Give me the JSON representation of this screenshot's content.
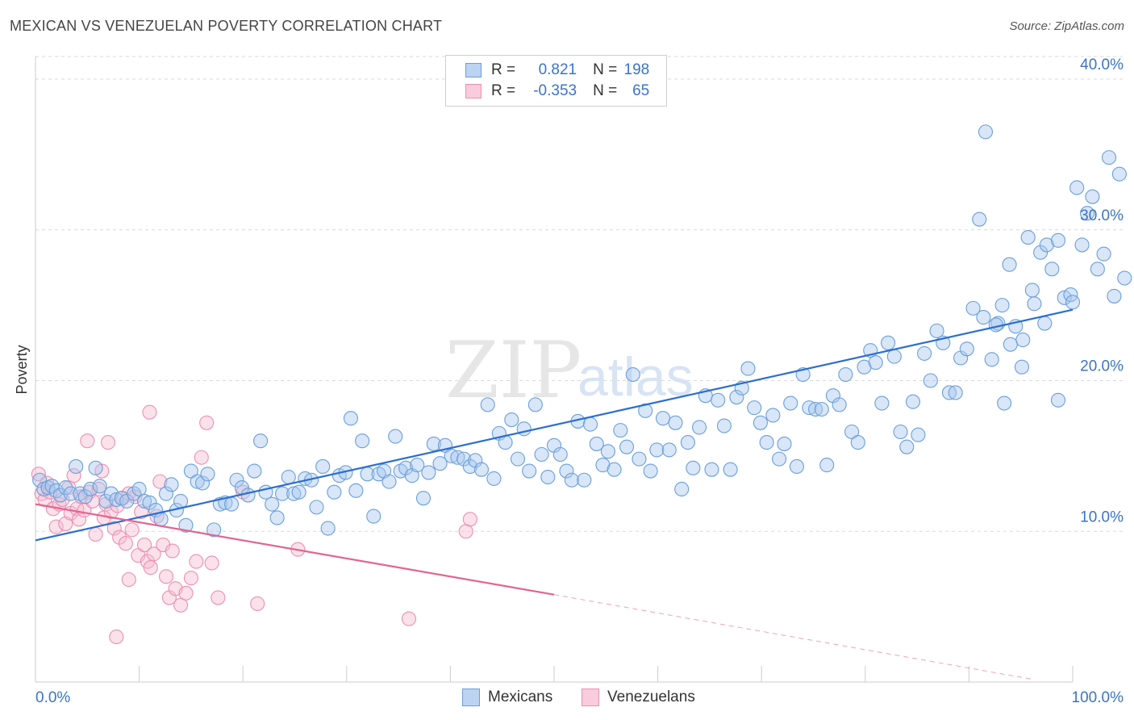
{
  "header": {
    "title": "MEXICAN VS VENEZUELAN POVERTY CORRELATION CHART",
    "source": "Source: ZipAtlas.com"
  },
  "legend": {
    "r_label": "R =",
    "n_label": "N =",
    "mexicans": {
      "r": "0.821",
      "n": "198"
    },
    "venezuelans": {
      "r": "-0.353",
      "n": "65"
    }
  },
  "bottom_legend": {
    "mexicans": "Mexicans",
    "venezuelans": "Venezuelans"
  },
  "watermark": {
    "zip": "ZIP",
    "atlas": "atlas"
  },
  "colors": {
    "mexicans_fill": "#a9c8ee",
    "mexicans_stroke": "#6a9fdc",
    "mexicans_line": "#2a6fcf",
    "venezuelans_fill": "#f6bcd0",
    "venezuelans_stroke": "#ec8fb0",
    "venezuelans_line": "#e3658f",
    "tick_text": "#3a74c9",
    "grid": "#d9d9d9"
  },
  "chart_data": {
    "type": "scatter",
    "title": "MEXICAN VS VENEZUELAN POVERTY CORRELATION CHART",
    "xlabel": "",
    "ylabel": "Poverty",
    "xlim": [
      0,
      100
    ],
    "ylim": [
      0,
      41.5
    ],
    "x_tick_labels": [
      "0.0%",
      "100.0%"
    ],
    "y_ticks": [
      10,
      20,
      30,
      40
    ],
    "y_tick_labels": [
      "10.0%",
      "20.0%",
      "30.0%",
      "40.0%"
    ],
    "grid": true,
    "legend_position": "top-center",
    "series": [
      {
        "name": "Mexicans",
        "r": 0.821,
        "n": 198,
        "trend": {
          "x": [
            0,
            100
          ],
          "y": [
            9.4,
            24.7
          ]
        },
        "points": [
          [
            0.4,
            13.4
          ],
          [
            0.8,
            12.8
          ],
          [
            1.2,
            12.9
          ],
          [
            1.6,
            13.0
          ],
          [
            2.0,
            12.7
          ],
          [
            2.4,
            12.4
          ],
          [
            2.9,
            12.9
          ],
          [
            3.4,
            12.5
          ],
          [
            3.9,
            14.3
          ],
          [
            4.3,
            12.5
          ],
          [
            4.8,
            12.3
          ],
          [
            5.3,
            12.8
          ],
          [
            5.8,
            14.2
          ],
          [
            6.2,
            13.0
          ],
          [
            6.8,
            12.0
          ],
          [
            7.3,
            12.5
          ],
          [
            7.8,
            12.1
          ],
          [
            8.3,
            12.2
          ],
          [
            8.8,
            12.0
          ],
          [
            9.5,
            12.5
          ],
          [
            10.0,
            12.8
          ],
          [
            10.5,
            12.0
          ],
          [
            11.0,
            11.9
          ],
          [
            11.6,
            11.4
          ],
          [
            12.1,
            10.8
          ],
          [
            12.6,
            12.5
          ],
          [
            13.1,
            13.1
          ],
          [
            13.6,
            11.4
          ],
          [
            14.0,
            12.0
          ],
          [
            14.5,
            10.4
          ],
          [
            15.0,
            14.0
          ],
          [
            15.6,
            13.3
          ],
          [
            16.1,
            13.2
          ],
          [
            16.6,
            13.8
          ],
          [
            17.2,
            10.1
          ],
          [
            17.8,
            11.8
          ],
          [
            18.3,
            11.9
          ],
          [
            18.9,
            11.8
          ],
          [
            19.4,
            13.4
          ],
          [
            19.9,
            12.9
          ],
          [
            20.5,
            12.4
          ],
          [
            21.1,
            14.0
          ],
          [
            21.7,
            16.0
          ],
          [
            22.2,
            12.6
          ],
          [
            22.8,
            11.8
          ],
          [
            23.3,
            10.9
          ],
          [
            23.8,
            12.5
          ],
          [
            24.4,
            13.6
          ],
          [
            24.9,
            12.5
          ],
          [
            25.4,
            12.6
          ],
          [
            26.0,
            13.5
          ],
          [
            26.6,
            13.4
          ],
          [
            27.1,
            11.6
          ],
          [
            27.7,
            14.3
          ],
          [
            28.2,
            10.2
          ],
          [
            28.8,
            12.6
          ],
          [
            29.3,
            13.7
          ],
          [
            29.9,
            13.9
          ],
          [
            30.4,
            17.5
          ],
          [
            30.9,
            12.7
          ],
          [
            31.5,
            16.0
          ],
          [
            32.0,
            13.8
          ],
          [
            32.6,
            11.0
          ],
          [
            33.1,
            13.8
          ],
          [
            33.6,
            14.0
          ],
          [
            34.1,
            13.3
          ],
          [
            34.7,
            16.3
          ],
          [
            35.2,
            14.0
          ],
          [
            35.7,
            14.2
          ],
          [
            36.3,
            13.7
          ],
          [
            36.8,
            14.4
          ],
          [
            37.4,
            12.2
          ],
          [
            37.9,
            13.9
          ],
          [
            38.4,
            15.8
          ],
          [
            39.0,
            14.5
          ],
          [
            39.5,
            15.7
          ],
          [
            40.1,
            15.0
          ],
          [
            40.7,
            14.9
          ],
          [
            41.3,
            14.8
          ],
          [
            41.9,
            14.3
          ],
          [
            42.4,
            14.7
          ],
          [
            43.0,
            14.1
          ],
          [
            43.6,
            18.4
          ],
          [
            44.2,
            13.5
          ],
          [
            44.7,
            16.5
          ],
          [
            45.3,
            15.9
          ],
          [
            45.9,
            17.4
          ],
          [
            46.5,
            14.8
          ],
          [
            47.1,
            16.8
          ],
          [
            47.6,
            14.0
          ],
          [
            48.2,
            18.4
          ],
          [
            48.8,
            15.1
          ],
          [
            49.4,
            13.6
          ],
          [
            50.0,
            15.7
          ],
          [
            50.6,
            15.1
          ],
          [
            51.2,
            14.0
          ],
          [
            51.7,
            13.4
          ],
          [
            52.3,
            17.3
          ],
          [
            52.9,
            13.4
          ],
          [
            53.5,
            17.1
          ],
          [
            54.1,
            15.8
          ],
          [
            54.7,
            14.4
          ],
          [
            55.2,
            15.3
          ],
          [
            55.8,
            14.1
          ],
          [
            56.4,
            16.7
          ],
          [
            57.0,
            15.6
          ],
          [
            57.6,
            20.4
          ],
          [
            58.2,
            14.8
          ],
          [
            58.8,
            18.0
          ],
          [
            59.3,
            14.0
          ],
          [
            59.9,
            15.4
          ],
          [
            60.5,
            17.5
          ],
          [
            61.1,
            15.4
          ],
          [
            61.7,
            17.2
          ],
          [
            62.3,
            12.8
          ],
          [
            62.9,
            15.9
          ],
          [
            63.4,
            14.2
          ],
          [
            64.0,
            16.9
          ],
          [
            64.6,
            19.0
          ],
          [
            65.2,
            14.1
          ],
          [
            65.8,
            18.7
          ],
          [
            66.4,
            17.0
          ],
          [
            67.0,
            14.1
          ],
          [
            67.6,
            18.9
          ],
          [
            68.1,
            19.5
          ],
          [
            68.7,
            20.8
          ],
          [
            69.3,
            18.2
          ],
          [
            69.9,
            17.2
          ],
          [
            70.5,
            15.9
          ],
          [
            71.1,
            17.7
          ],
          [
            71.7,
            14.8
          ],
          [
            72.2,
            15.8
          ],
          [
            72.8,
            18.5
          ],
          [
            73.4,
            14.3
          ],
          [
            74.0,
            20.4
          ],
          [
            74.6,
            18.2
          ],
          [
            75.2,
            18.1
          ],
          [
            75.8,
            18.1
          ],
          [
            76.3,
            14.4
          ],
          [
            76.9,
            19.0
          ],
          [
            77.5,
            18.4
          ],
          [
            78.1,
            20.4
          ],
          [
            78.7,
            16.6
          ],
          [
            79.3,
            15.9
          ],
          [
            79.9,
            20.9
          ],
          [
            80.5,
            22.0
          ],
          [
            81.0,
            21.2
          ],
          [
            81.6,
            18.5
          ],
          [
            82.2,
            22.5
          ],
          [
            82.8,
            21.6
          ],
          [
            83.4,
            16.6
          ],
          [
            84.0,
            15.6
          ],
          [
            84.6,
            18.6
          ],
          [
            85.1,
            16.4
          ],
          [
            85.7,
            21.8
          ],
          [
            86.3,
            20.0
          ],
          [
            86.9,
            23.3
          ],
          [
            87.5,
            22.5
          ],
          [
            88.1,
            19.2
          ],
          [
            88.7,
            19.2
          ],
          [
            89.2,
            21.5
          ],
          [
            89.8,
            22.1
          ],
          [
            90.4,
            24.8
          ],
          [
            91.0,
            30.7
          ],
          [
            91.6,
            36.5
          ],
          [
            92.2,
            21.4
          ],
          [
            92.8,
            23.8
          ],
          [
            93.4,
            18.5
          ],
          [
            93.9,
            27.7
          ],
          [
            94.5,
            23.6
          ],
          [
            95.1,
            20.9
          ],
          [
            95.7,
            29.5
          ],
          [
            96.3,
            25.1
          ],
          [
            96.9,
            28.5
          ],
          [
            97.5,
            29.0
          ],
          [
            98.0,
            27.4
          ],
          [
            98.6,
            29.3
          ],
          [
            99.2,
            25.5
          ],
          [
            99.8,
            25.7
          ],
          [
            100.0,
            25.2
          ],
          [
            100.4,
            32.8
          ],
          [
            100.9,
            29.0
          ],
          [
            101.4,
            31.1
          ],
          [
            101.9,
            32.2
          ],
          [
            102.4,
            27.4
          ],
          [
            103.0,
            28.4
          ],
          [
            103.5,
            34.8
          ],
          [
            104.0,
            25.6
          ],
          [
            104.5,
            33.7
          ],
          [
            105.0,
            26.8
          ],
          [
            98.6,
            18.7
          ],
          [
            97.3,
            23.8
          ],
          [
            96.1,
            26.0
          ],
          [
            95.2,
            22.7
          ],
          [
            94.0,
            22.4
          ],
          [
            93.2,
            25.0
          ],
          [
            92.6,
            23.7
          ],
          [
            91.4,
            24.2
          ]
        ]
      },
      {
        "name": "Venezuelans",
        "r": -0.353,
        "n": 65,
        "trend": {
          "x": [
            0,
            50
          ],
          "y": [
            11.8,
            5.8
          ],
          "dashed_to": [
            96,
            0.2
          ]
        },
        "points": [
          [
            0.3,
            13.8
          ],
          [
            0.6,
            12.5
          ],
          [
            0.9,
            12.1
          ],
          [
            1.1,
            13.2
          ],
          [
            1.4,
            12.6
          ],
          [
            1.7,
            11.5
          ],
          [
            2.0,
            10.3
          ],
          [
            2.3,
            11.8
          ],
          [
            2.6,
            12.1
          ],
          [
            2.9,
            10.5
          ],
          [
            3.2,
            12.9
          ],
          [
            3.4,
            11.2
          ],
          [
            3.7,
            13.7
          ],
          [
            4.0,
            11.5
          ],
          [
            4.2,
            10.8
          ],
          [
            4.4,
            12.3
          ],
          [
            4.7,
            11.4
          ],
          [
            5.0,
            16.0
          ],
          [
            5.2,
            12.6
          ],
          [
            5.5,
            12.0
          ],
          [
            5.8,
            9.8
          ],
          [
            6.1,
            12.8
          ],
          [
            6.4,
            14.0
          ],
          [
            6.6,
            10.9
          ],
          [
            6.8,
            11.8
          ],
          [
            7.0,
            15.9
          ],
          [
            7.3,
            11.3
          ],
          [
            7.6,
            10.2
          ],
          [
            7.9,
            11.7
          ],
          [
            8.1,
            9.6
          ],
          [
            8.4,
            12.2
          ],
          [
            8.7,
            9.2
          ],
          [
            9.0,
            12.5
          ],
          [
            9.3,
            10.1
          ],
          [
            9.6,
            12.3
          ],
          [
            9.9,
            8.4
          ],
          [
            10.2,
            11.3
          ],
          [
            10.5,
            9.1
          ],
          [
            10.8,
            8.0
          ],
          [
            11.1,
            7.6
          ],
          [
            11.4,
            8.5
          ],
          [
            11.7,
            11.0
          ],
          [
            12.0,
            13.3
          ],
          [
            12.3,
            9.1
          ],
          [
            12.6,
            7.0
          ],
          [
            12.9,
            5.6
          ],
          [
            13.2,
            8.7
          ],
          [
            13.5,
            6.2
          ],
          [
            14.0,
            5.1
          ],
          [
            14.5,
            5.9
          ],
          [
            15.0,
            6.9
          ],
          [
            15.5,
            8.0
          ],
          [
            16.0,
            14.9
          ],
          [
            16.5,
            17.2
          ],
          [
            17.0,
            7.9
          ],
          [
            17.6,
            5.6
          ],
          [
            11.0,
            17.9
          ],
          [
            9.0,
            6.8
          ],
          [
            7.8,
            3.0
          ],
          [
            21.4,
            5.2
          ],
          [
            20.0,
            12.6
          ],
          [
            25.3,
            8.8
          ],
          [
            41.5,
            10.0
          ],
          [
            41.9,
            10.8
          ],
          [
            36.0,
            4.2
          ]
        ]
      }
    ]
  }
}
